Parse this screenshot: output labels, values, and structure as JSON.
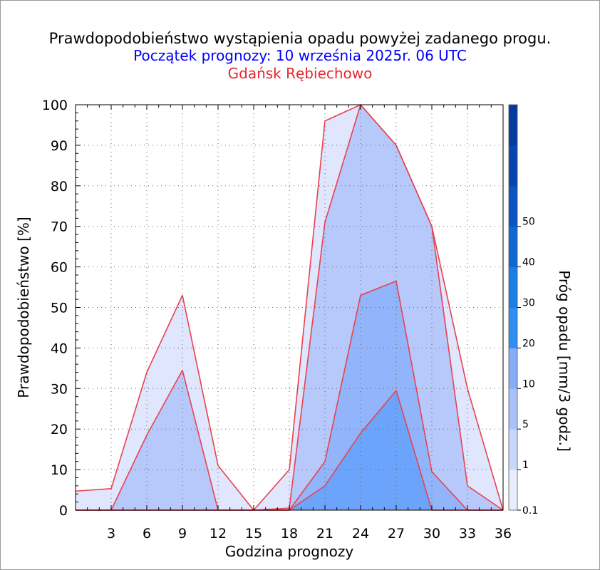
{
  "chart_data": {
    "type": "area",
    "title": "Prawdopodobieństwo wystąpienia opadu powyżej zadanego progu.",
    "subtitle": "Początek prognozy: 10 września 2025r. 06 UTC",
    "location": "Gdańsk Rębiechowo",
    "xlabel": "Godzina prognozy",
    "ylabel": "Prawdopodobieństwo [%]",
    "colorbar_label": "Próg opadu [mm/3 godz.]",
    "xlim": [
      0,
      36
    ],
    "ylim": [
      0,
      100
    ],
    "x_ticks": [
      "3",
      "6",
      "9",
      "12",
      "15",
      "18",
      "21",
      "24",
      "27",
      "30",
      "33",
      "36"
    ],
    "y_ticks": [
      "0",
      "10",
      "20",
      "30",
      "40",
      "50",
      "60",
      "70",
      "80",
      "90",
      "100"
    ],
    "x": [
      0,
      3,
      6,
      9,
      12,
      15,
      18,
      21,
      24,
      27,
      30,
      33,
      36
    ],
    "series": [
      {
        "name": "0.1",
        "color": "#dfe6fd",
        "values": [
          4.7,
          5.3,
          34,
          53,
          11,
          0,
          10,
          96,
          100,
          90,
          70,
          30,
          0
        ]
      },
      {
        "name": "1",
        "color": "#b7c9fb",
        "values": [
          0,
          0,
          18.5,
          34.5,
          0,
          0,
          0.5,
          71,
          100,
          90,
          70,
          6,
          0
        ]
      },
      {
        "name": "5",
        "color": "#92b4fa",
        "values": [
          0,
          0,
          0,
          0,
          0,
          0,
          0,
          12,
          53,
          56.5,
          9.5,
          0,
          0
        ]
      },
      {
        "name": "10",
        "color": "#6ba4fa",
        "values": [
          0,
          0,
          0,
          0,
          0,
          0,
          0,
          6,
          19,
          29.5,
          0,
          0,
          0
        ]
      }
    ],
    "colorbar": {
      "tick_labels": [
        "0.1",
        "1",
        "5",
        "10",
        "20",
        "30",
        "40",
        "50"
      ],
      "colors": [
        "#e8edfe",
        "#c9d7fc",
        "#a9c2fb",
        "#86adf9",
        "#2f8ff2",
        "#1a7fe8",
        "#0f68d6",
        "#0a54c3",
        "#0745b0",
        "#053a9f"
      ]
    },
    "line_color": "#e8424e",
    "grid": true
  }
}
